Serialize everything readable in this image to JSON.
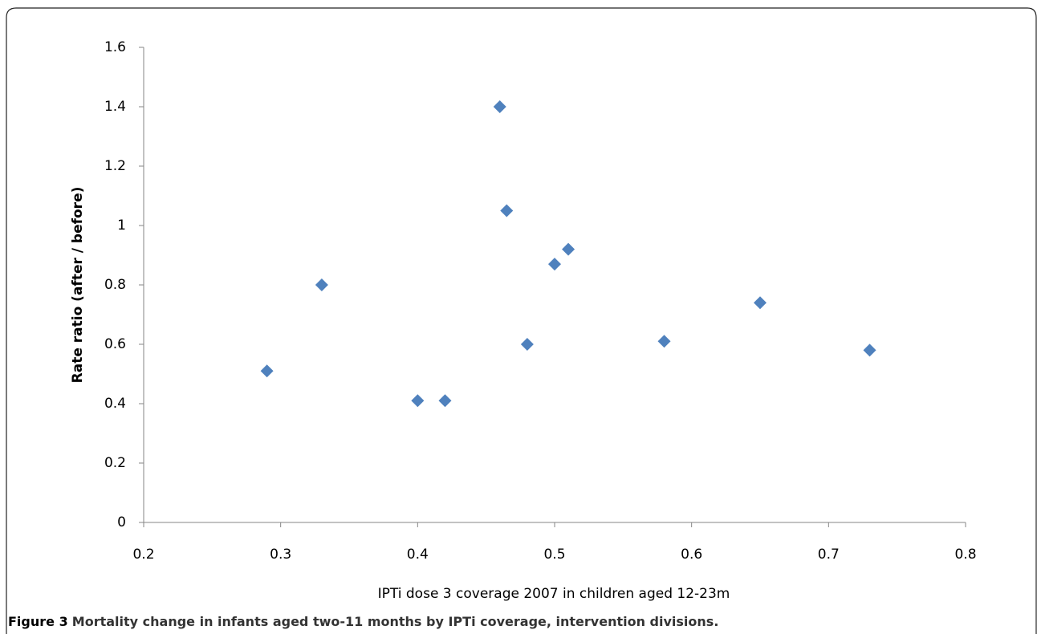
{
  "chart_data": {
    "type": "scatter",
    "x_label": "IPTi dose 3 coverage 2007 in children aged 12-23m",
    "y_label": "Rate ratio (after / before)",
    "figure_label": "Figure 3",
    "caption": "Mortality change in infants aged two-11 months by IPTi coverage, intervention divisions.",
    "x": [
      0.29,
      0.33,
      0.4,
      0.42,
      0.46,
      0.465,
      0.48,
      0.5,
      0.51,
      0.58,
      0.65,
      0.73
    ],
    "values": [
      0.51,
      0.8,
      0.41,
      0.41,
      1.4,
      1.05,
      0.6,
      0.87,
      0.92,
      0.61,
      0.74,
      0.58
    ],
    "color": "#4f81bd",
    "xlim": [
      0.2,
      0.8
    ],
    "xticks": [
      0.2,
      0.3,
      0.4,
      0.5,
      0.6,
      0.7,
      0.8
    ],
    "ylim": [
      0,
      1.6
    ],
    "yticks": [
      0,
      0.2,
      0.4,
      0.6,
      0.8,
      1,
      1.2,
      1.4,
      1.6
    ],
    "grid": false
  }
}
